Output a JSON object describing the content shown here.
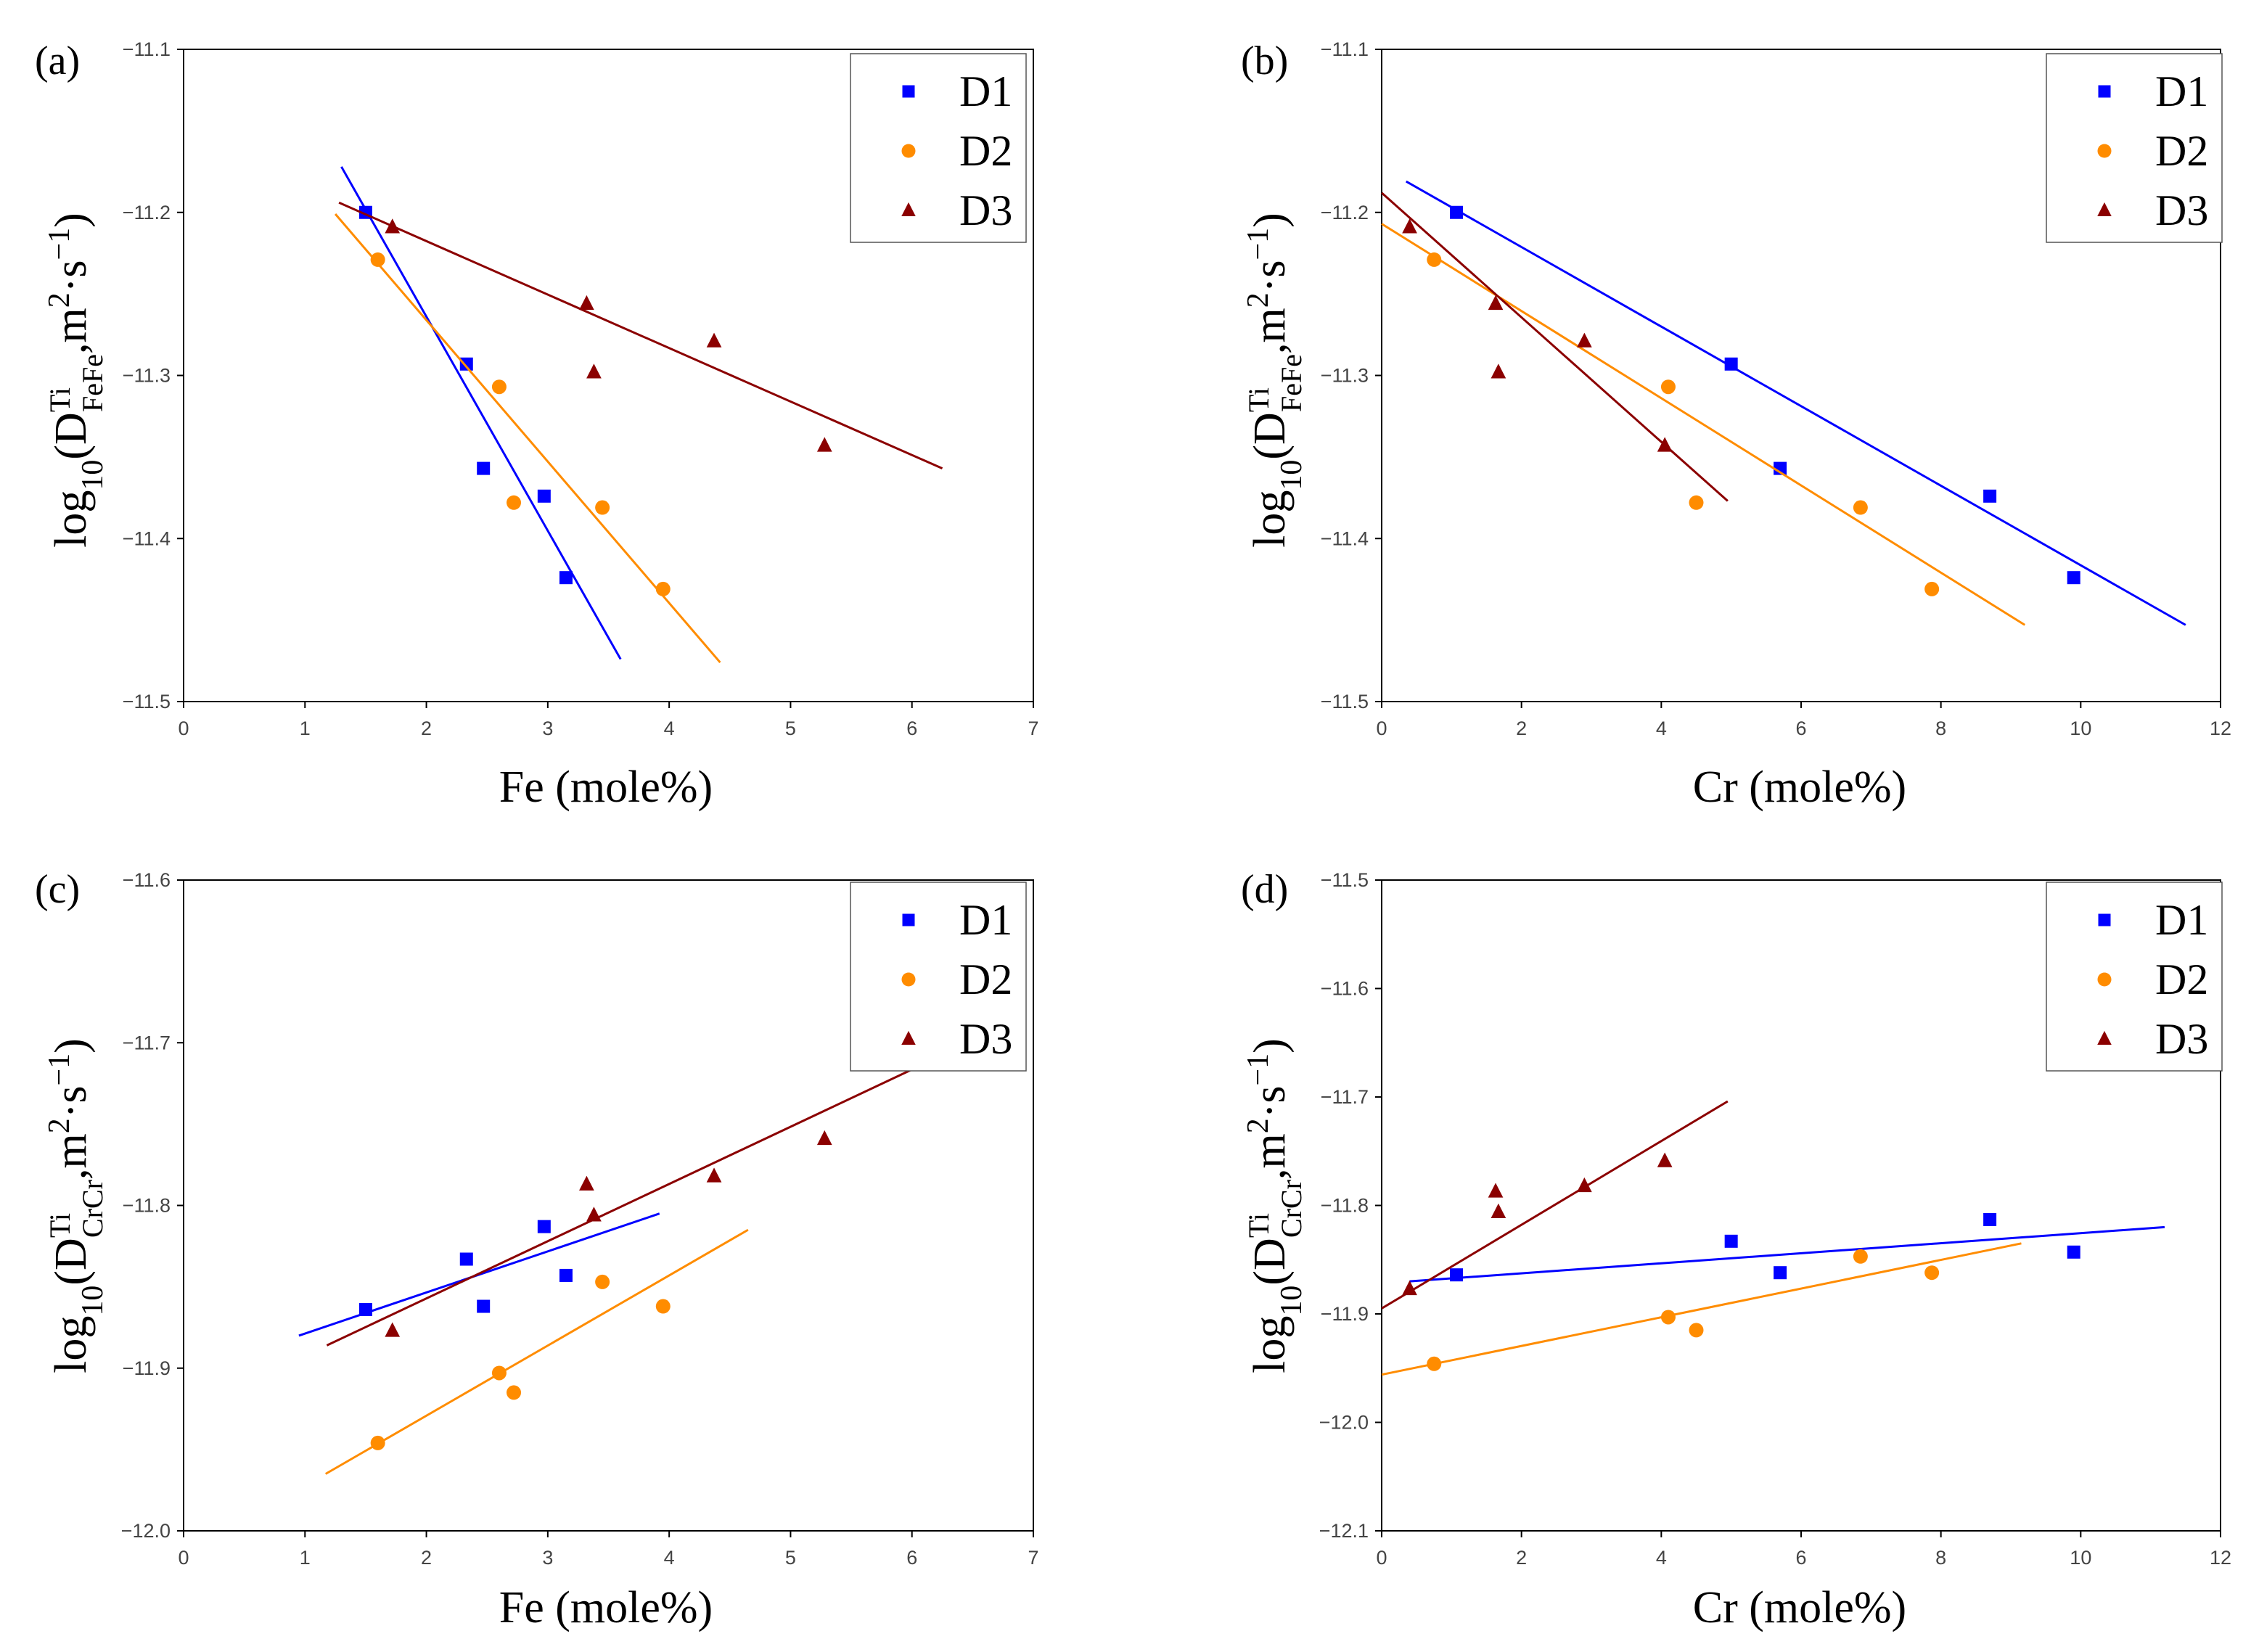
{
  "figure": {
    "series_names": [
      "D1",
      "D2",
      "D3"
    ],
    "colors": {
      "D1": "#0000ff",
      "D2": "#ff8c00",
      "D3": "#8b0000"
    },
    "ylabel_parts": {
      "base": "log",
      "sub": "10",
      "open": "(D",
      "sup": "Ti",
      "comma": ",m",
      "sq": "2",
      "dot": "·s",
      "neg": "−1",
      "close": ")"
    }
  },
  "chart_data": [
    {
      "type": "scatter",
      "panel_label": "(a)",
      "xlabel": "Fe (mole%)",
      "ylabel_sub": "FeFe",
      "xlim": [
        0,
        7
      ],
      "ylim": [
        -11.5,
        -11.1
      ],
      "xticks": [
        "0",
        "1",
        "2",
        "3",
        "4",
        "5",
        "6",
        "7"
      ],
      "yticks": [
        "−11.1",
        "−11.2",
        "−11.3",
        "−11.4",
        "−11.5"
      ],
      "legend_position": "top-right",
      "series": [
        {
          "name": "D1",
          "marker": "square",
          "x": [
            1.5,
            2.33,
            2.47,
            2.97,
            3.15
          ],
          "y": [
            -11.2,
            -11.293,
            -11.357,
            -11.374,
            -11.424
          ],
          "fit": {
            "x": [
              1.3,
              3.6
            ],
            "y": [
              -11.172,
              -11.474
            ]
          }
        },
        {
          "name": "D2",
          "marker": "circle",
          "x": [
            1.6,
            2.6,
            2.72,
            3.45,
            3.95
          ],
          "y": [
            -11.229,
            -11.307,
            -11.378,
            -11.381,
            -11.431
          ],
          "fit": {
            "x": [
              1.25,
              4.42
            ],
            "y": [
              -11.201,
              -11.476
            ]
          }
        },
        {
          "name": "D3",
          "marker": "triangle",
          "x": [
            1.72,
            3.32,
            3.38,
            4.37,
            5.28
          ],
          "y": [
            -11.209,
            -11.256,
            -11.298,
            -11.279,
            -11.343
          ],
          "fit": {
            "x": [
              1.28,
              6.25
            ],
            "y": [
              -11.194,
              -11.357
            ]
          }
        }
      ]
    },
    {
      "type": "scatter",
      "panel_label": "(b)",
      "xlabel": "Cr (mole%)",
      "ylabel_sub": "FeFe",
      "xlim": [
        0,
        12
      ],
      "ylim": [
        -11.5,
        -11.1
      ],
      "xticks": [
        "0",
        "2",
        "4",
        "6",
        "8",
        "10",
        "12"
      ],
      "yticks": [
        "−11.1",
        "−11.2",
        "−11.3",
        "−11.4",
        "−11.5"
      ],
      "legend_position": "top-right",
      "series": [
        {
          "name": "D1",
          "marker": "square",
          "x": [
            1.07,
            5.0,
            5.7,
            8.7,
            9.9
          ],
          "y": [
            -11.2,
            -11.293,
            -11.357,
            -11.374,
            -11.424
          ],
          "fit": {
            "x": [
              0.35,
              11.5
            ],
            "y": [
              -11.181,
              -11.453
            ]
          }
        },
        {
          "name": "D2",
          "marker": "circle",
          "x": [
            0.75,
            4.1,
            4.5,
            6.85,
            7.87
          ],
          "y": [
            -11.229,
            -11.307,
            -11.378,
            -11.381,
            -11.431
          ],
          "fit": {
            "x": [
              0.0,
              9.2
            ],
            "y": [
              -11.207,
              -11.453
            ]
          }
        },
        {
          "name": "D3",
          "marker": "triangle",
          "x": [
            0.4,
            1.63,
            1.67,
            2.9,
            4.05
          ],
          "y": [
            -11.209,
            -11.256,
            -11.298,
            -11.279,
            -11.343
          ],
          "fit": {
            "x": [
              0.0,
              4.95
            ],
            "y": [
              -11.188,
              -11.377
            ]
          }
        }
      ]
    },
    {
      "type": "scatter",
      "panel_label": "(c)",
      "xlabel": "Fe (mole%)",
      "ylabel_sub": "CrCr",
      "xlim": [
        0,
        7
      ],
      "ylim": [
        -12.0,
        -11.6
      ],
      "xticks": [
        "0",
        "1",
        "2",
        "3",
        "4",
        "5",
        "6",
        "7"
      ],
      "yticks": [
        "−11.6",
        "−11.7",
        "−11.8",
        "−11.9",
        "−12.0"
      ],
      "legend_position": "top-right",
      "series": [
        {
          "name": "D1",
          "marker": "square",
          "x": [
            1.5,
            2.33,
            2.47,
            2.97,
            3.15
          ],
          "y": [
            -11.864,
            -11.833,
            -11.862,
            -11.813,
            -11.843
          ],
          "fit": {
            "x": [
              0.95,
              3.92
            ],
            "y": [
              -11.88,
              -11.805
            ]
          }
        },
        {
          "name": "D2",
          "marker": "circle",
          "x": [
            1.6,
            2.6,
            2.72,
            3.45,
            3.95
          ],
          "y": [
            -11.946,
            -11.903,
            -11.915,
            -11.847,
            -11.862
          ],
          "fit": {
            "x": [
              1.17,
              4.65
            ],
            "y": [
              -11.965,
              -11.815
            ]
          }
        },
        {
          "name": "D3",
          "marker": "triangle",
          "x": [
            1.72,
            3.32,
            3.38,
            4.37,
            5.28
          ],
          "y": [
            -11.877,
            -11.787,
            -11.806,
            -11.782,
            -11.759
          ],
          "fit": {
            "x": [
              1.18,
              6.07
            ],
            "y": [
              -11.886,
              -11.714
            ]
          }
        }
      ]
    },
    {
      "type": "scatter",
      "panel_label": "(d)",
      "xlabel": "Cr (mole%)",
      "ylabel_sub": "CrCr",
      "xlim": [
        0,
        12
      ],
      "ylim": [
        -12.1,
        -11.5
      ],
      "xticks": [
        "0",
        "2",
        "4",
        "6",
        "8",
        "10",
        "12"
      ],
      "yticks": [
        "−11.5",
        "−11.6",
        "−11.7",
        "−11.8",
        "−11.9",
        "−12.0",
        "−12.1"
      ],
      "legend_position": "top-right",
      "series": [
        {
          "name": "D1",
          "marker": "square",
          "x": [
            1.07,
            5.0,
            5.7,
            8.7,
            9.9
          ],
          "y": [
            -11.864,
            -11.833,
            -11.862,
            -11.813,
            -11.843
          ],
          "fit": {
            "x": [
              0.4,
              11.2
            ],
            "y": [
              -11.87,
              -11.82
            ]
          }
        },
        {
          "name": "D2",
          "marker": "circle",
          "x": [
            0.75,
            4.1,
            4.5,
            6.85,
            7.87
          ],
          "y": [
            -11.946,
            -11.903,
            -11.915,
            -11.847,
            -11.862
          ],
          "fit": {
            "x": [
              0.0,
              9.15
            ],
            "y": [
              -11.956,
              -11.835
            ]
          }
        },
        {
          "name": "D3",
          "marker": "triangle",
          "x": [
            0.4,
            1.63,
            1.67,
            2.9,
            4.05
          ],
          "y": [
            -11.877,
            -11.787,
            -11.806,
            -11.782,
            -11.759
          ],
          "fit": {
            "x": [
              0.0,
              4.95
            ],
            "y": [
              -11.895,
              -11.704
            ]
          }
        }
      ]
    }
  ]
}
